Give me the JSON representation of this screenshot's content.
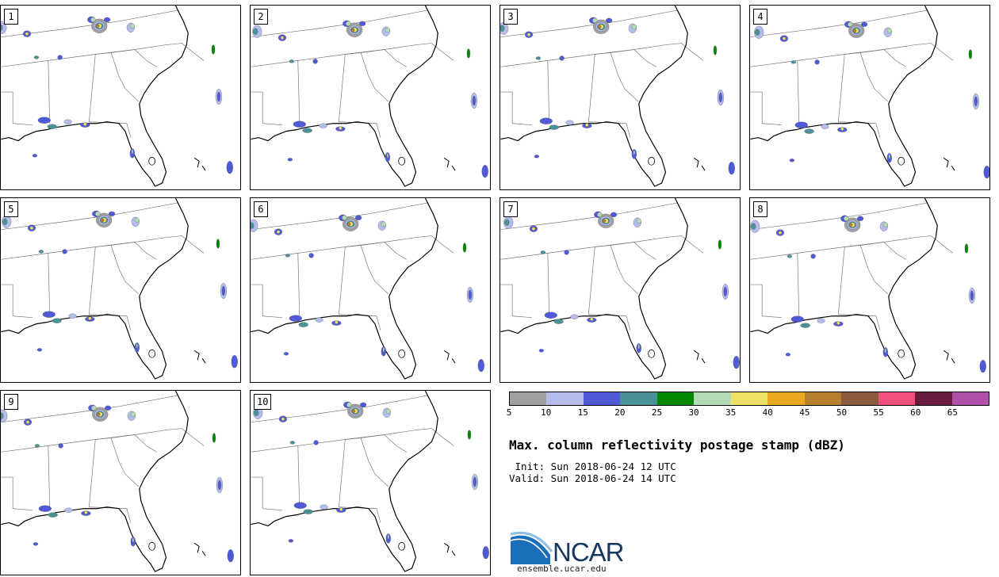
{
  "panels": [
    {
      "label": "1"
    },
    {
      "label": "2"
    },
    {
      "label": "3"
    },
    {
      "label": "4"
    },
    {
      "label": "5"
    },
    {
      "label": "6"
    },
    {
      "label": "7"
    },
    {
      "label": "8"
    },
    {
      "label": "9"
    },
    {
      "label": "10"
    }
  ],
  "colorbar": {
    "colors": [
      "#a0a0a0",
      "#b4bcec",
      "#505ad6",
      "#4a9296",
      "#008800",
      "#b4dcb4",
      "#f0e068",
      "#eaa820",
      "#b8802e",
      "#8c5a3c",
      "#f0507c",
      "#6a1a3c",
      "#b050a8"
    ],
    "ticks": [
      "5",
      "10",
      "15",
      "20",
      "25",
      "30",
      "35",
      "40",
      "45",
      "50",
      "55",
      "60",
      "65"
    ]
  },
  "title": "Max. column reflectivity postage stamp (dBZ)",
  "init_line": " Init: Sun 2018-06-24 12 UTC",
  "valid_line": "Valid: Sun 2018-06-24 14 UTC",
  "logo": {
    "text": "NCAR",
    "site": "ensemble.ucar.edu"
  }
}
